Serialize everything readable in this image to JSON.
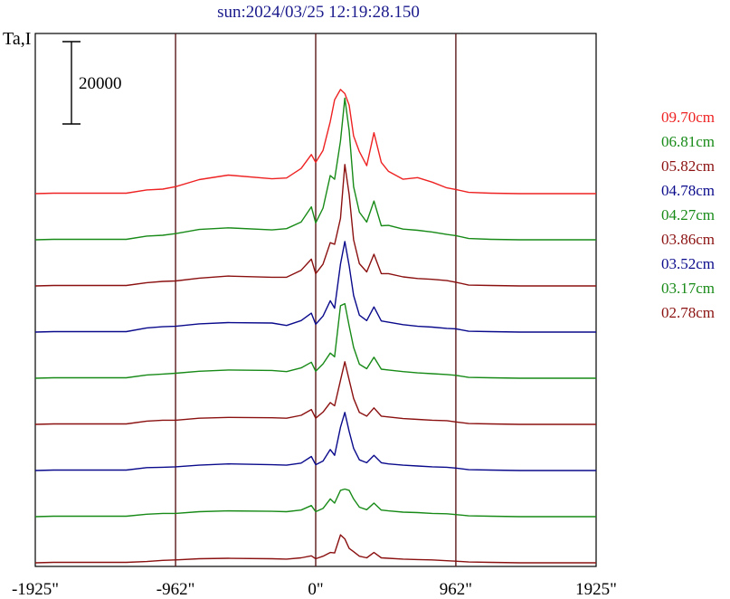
{
  "chart_data": {
    "type": "line",
    "title": "sun:2024/03/25 12:19:28.150",
    "ylabel": "Ta,I",
    "scale_bar_label": "20000",
    "scale_bar_value": 20000,
    "x_ticks": [
      "-1925\"",
      "-962\"",
      "0\"",
      "962\"",
      "1925\""
    ],
    "x_tick_values": [
      -1925,
      -962,
      0,
      962,
      1925
    ],
    "xlim": [
      -1925,
      1925
    ],
    "vertical_lines": [
      -962,
      0,
      962
    ],
    "layout": "stacked profiles, offset vertically, lowest frequency at bottom",
    "x": [
      -1925,
      -1800,
      -1700,
      -1300,
      -1160,
      -1050,
      -962,
      -800,
      -600,
      -300,
      -200,
      -100,
      -30,
      0,
      50,
      100,
      130,
      170,
      200,
      230,
      260,
      300,
      350,
      400,
      450,
      500,
      600,
      700,
      800,
      900,
      962,
      1050,
      1200,
      1400,
      1925
    ],
    "series": [
      {
        "name": "09.70cm",
        "color": "#ee2222",
        "values": [
          0,
          100,
          100,
          100,
          900,
          1100,
          1700,
          3400,
          4500,
          3600,
          3800,
          6100,
          9500,
          7600,
          10500,
          17500,
          22800,
          25300,
          24300,
          21500,
          14000,
          10200,
          6800,
          14800,
          7600,
          5400,
          3500,
          3900,
          2800,
          1400,
          1000,
          300,
          100,
          0,
          0
        ]
      },
      {
        "name": "06.81cm",
        "color": "#178a17",
        "values": [
          0,
          100,
          100,
          100,
          900,
          1100,
          1500,
          2500,
          2900,
          2400,
          2700,
          4300,
          8000,
          4100,
          7700,
          15600,
          14700,
          24000,
          34400,
          26500,
          12900,
          6700,
          4300,
          9400,
          3400,
          3500,
          2600,
          2300,
          1900,
          1300,
          1000,
          300,
          100,
          0,
          0
        ]
      },
      {
        "name": "05.82cm",
        "color": "#8b1010",
        "values": [
          0,
          100,
          100,
          100,
          800,
          1100,
          1200,
          1900,
          2400,
          2100,
          2100,
          3800,
          6500,
          3000,
          5300,
          10500,
          10100,
          16400,
          29500,
          22200,
          11200,
          5400,
          3400,
          7700,
          3000,
          3000,
          2200,
          1800,
          1600,
          1300,
          900,
          200,
          100,
          0,
          0
        ]
      },
      {
        "name": "04.78cm",
        "color": "#0a0a8c",
        "values": [
          0,
          100,
          100,
          100,
          1000,
          1300,
          1400,
          2000,
          2300,
          2200,
          1600,
          2800,
          4600,
          1900,
          3900,
          7600,
          5800,
          16500,
          22000,
          16100,
          8900,
          4100,
          2800,
          6100,
          2700,
          2400,
          1800,
          1400,
          1200,
          900,
          800,
          200,
          100,
          0,
          0
        ]
      },
      {
        "name": "04.27cm",
        "color": "#178a17",
        "values": [
          0,
          100,
          100,
          100,
          800,
          1000,
          1200,
          1700,
          2000,
          1900,
          1600,
          2500,
          3900,
          1700,
          3500,
          6100,
          5200,
          17600,
          18100,
          12700,
          7500,
          3400,
          2300,
          5100,
          2200,
          2000,
          1600,
          1300,
          1100,
          900,
          700,
          200,
          100,
          0,
          0
        ]
      },
      {
        "name": "03.86cm",
        "color": "#8b1010",
        "values": [
          0,
          100,
          100,
          100,
          800,
          1000,
          1000,
          1500,
          1700,
          1600,
          1500,
          2200,
          3600,
          1500,
          3000,
          5300,
          4500,
          10700,
          15200,
          10800,
          6300,
          2900,
          2000,
          4000,
          2000,
          1800,
          1400,
          1200,
          1000,
          900,
          600,
          200,
          100,
          0,
          0
        ]
      },
      {
        "name": "03.52cm",
        "color": "#0a0a8c",
        "values": [
          0,
          100,
          100,
          100,
          700,
          800,
          900,
          1300,
          1600,
          1400,
          1300,
          1800,
          3400,
          1400,
          2300,
          5100,
          3700,
          10500,
          14100,
          9500,
          5400,
          2600,
          1900,
          3700,
          1900,
          1600,
          1300,
          1100,
          900,
          800,
          600,
          200,
          100,
          0,
          0
        ]
      },
      {
        "name": "03.17cm",
        "color": "#178a17",
        "values": [
          0,
          100,
          100,
          100,
          600,
          800,
          800,
          1200,
          1400,
          1300,
          1200,
          1600,
          2700,
          1200,
          2000,
          4300,
          3300,
          6400,
          6700,
          6400,
          4300,
          2300,
          1700,
          3300,
          1600,
          1400,
          1100,
          1000,
          800,
          700,
          500,
          200,
          100,
          0,
          0
        ]
      },
      {
        "name": "02.78cm",
        "color": "#8b1010",
        "values": [
          0,
          100,
          100,
          100,
          300,
          600,
          700,
          1000,
          1100,
          1000,
          900,
          1200,
          1700,
          1000,
          1600,
          2500,
          2400,
          6800,
          5800,
          3500,
          2700,
          1600,
          1200,
          2500,
          1200,
          1100,
          900,
          800,
          700,
          500,
          400,
          200,
          100,
          0,
          0
        ]
      }
    ]
  }
}
